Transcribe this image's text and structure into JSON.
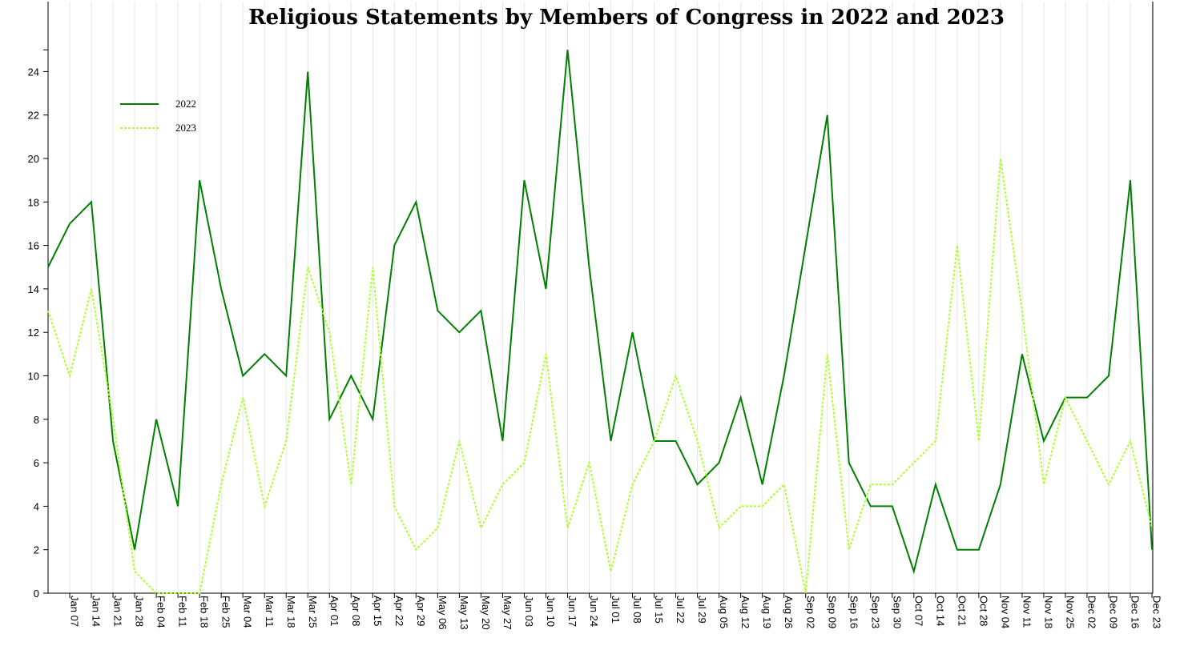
{
  "chart_data": {
    "type": "line",
    "title": "Religious Statements by Members of Congress in 2022 and 2023",
    "xlabel": "",
    "ylabel": "",
    "ylim": [
      0,
      25
    ],
    "yticks": [
      0,
      2,
      4,
      6,
      8,
      10,
      12,
      14,
      16,
      18,
      20,
      22,
      24
    ],
    "grid": "vertical",
    "legend_position": "top-left",
    "categories": [
      "",
      "Jan 07",
      "Jan 14",
      "Jan 21",
      "Jan 28",
      "Feb 04",
      "Feb 11",
      "Feb 18",
      "Feb 25",
      "Mar 04",
      "Mar 11",
      "Mar 18",
      "Mar 25",
      "Apr 01",
      "Apr 08",
      "Apr 15",
      "Apr 22",
      "Apr 29",
      "May 06",
      "May 13",
      "May 20",
      "May 27",
      "Jun 03",
      "Jun 10",
      "Jun 17",
      "Jun 24",
      "Jul 01",
      "Jul 08",
      "Jul 15",
      "Jul 22",
      "Jul 29",
      "Aug 05",
      "Aug 12",
      "Aug 19",
      "Aug 26",
      "Sep 02",
      "Sep 09",
      "Sep 16",
      "Sep 23",
      "Sep 30",
      "Oct 07",
      "Oct 14",
      "Oct 21",
      "Oct 28",
      "Nov 04",
      "Nov 11",
      "Nov 18",
      "Nov 25",
      "Dec 02",
      "Dec 09",
      "Dec 16",
      "Dec 23"
    ],
    "series": [
      {
        "name": "2022",
        "color": "#008000",
        "style": "solid",
        "values": [
          15,
          17,
          18,
          7,
          2,
          8,
          4,
          19,
          14,
          10,
          11,
          10,
          24,
          8,
          10,
          8,
          16,
          18,
          13,
          12,
          13,
          7,
          19,
          14,
          25,
          15,
          7,
          12,
          7,
          7,
          5,
          6,
          9,
          5,
          10,
          16,
          22,
          6,
          4,
          4,
          1,
          5,
          2,
          2,
          5,
          11,
          7,
          9,
          9,
          10,
          19,
          2
        ]
      },
      {
        "name": "2023",
        "color": "#adff2f",
        "style": "dotted",
        "values": [
          13,
          10,
          14,
          8,
          1,
          0,
          0,
          0,
          5,
          9,
          4,
          7,
          15,
          12,
          5,
          15,
          4,
          2,
          3,
          7,
          3,
          5,
          6,
          11,
          3,
          6,
          1,
          5,
          7,
          10,
          7,
          3,
          4,
          4,
          5,
          0,
          11,
          2,
          5,
          5,
          6,
          7,
          16,
          7,
          20,
          13,
          5,
          9,
          7,
          5,
          7,
          3
        ]
      }
    ]
  }
}
